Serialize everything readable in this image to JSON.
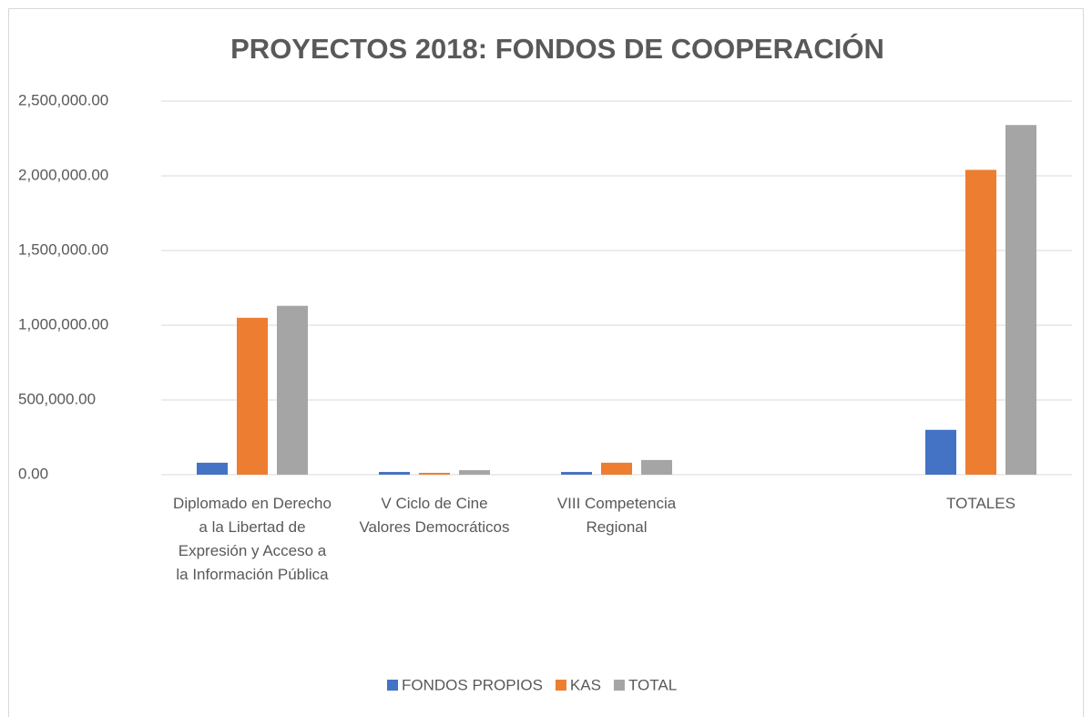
{
  "chart_data": {
    "type": "bar",
    "title": "PROYECTOS 2018: FONDOS DE COOPERACIÓN",
    "categories": [
      "Diplomado en Derecho a la Libertad de Expresión y Acceso a la Información Pública",
      "V Ciclo de Cine Valores Democráticos",
      "VIII Competencia Regional",
      null,
      "TOTALES"
    ],
    "series": [
      {
        "name": "FONDOS PROPIOS",
        "color": "#4472c4",
        "values": [
          80000,
          18000,
          18000,
          null,
          300000
        ]
      },
      {
        "name": "KAS",
        "color": "#ed7d31",
        "values": [
          1050000,
          12000,
          80000,
          null,
          2040000
        ]
      },
      {
        "name": "TOTAL",
        "color": "#a5a5a5",
        "values": [
          1130000,
          30000,
          98000,
          null,
          2340000
        ]
      }
    ],
    "ylim": [
      0,
      2500000
    ],
    "yticks": [
      {
        "value": 0,
        "label": "0.00"
      },
      {
        "value": 500000,
        "label": "500,000.00"
      },
      {
        "value": 1000000,
        "label": "1,000,000.00"
      },
      {
        "value": 1500000,
        "label": "1,500,000.00"
      },
      {
        "value": 2000000,
        "label": "2,000,000.00"
      },
      {
        "value": 2500000,
        "label": "2,500,000.00"
      }
    ],
    "grid": true,
    "legend": "bottom"
  }
}
